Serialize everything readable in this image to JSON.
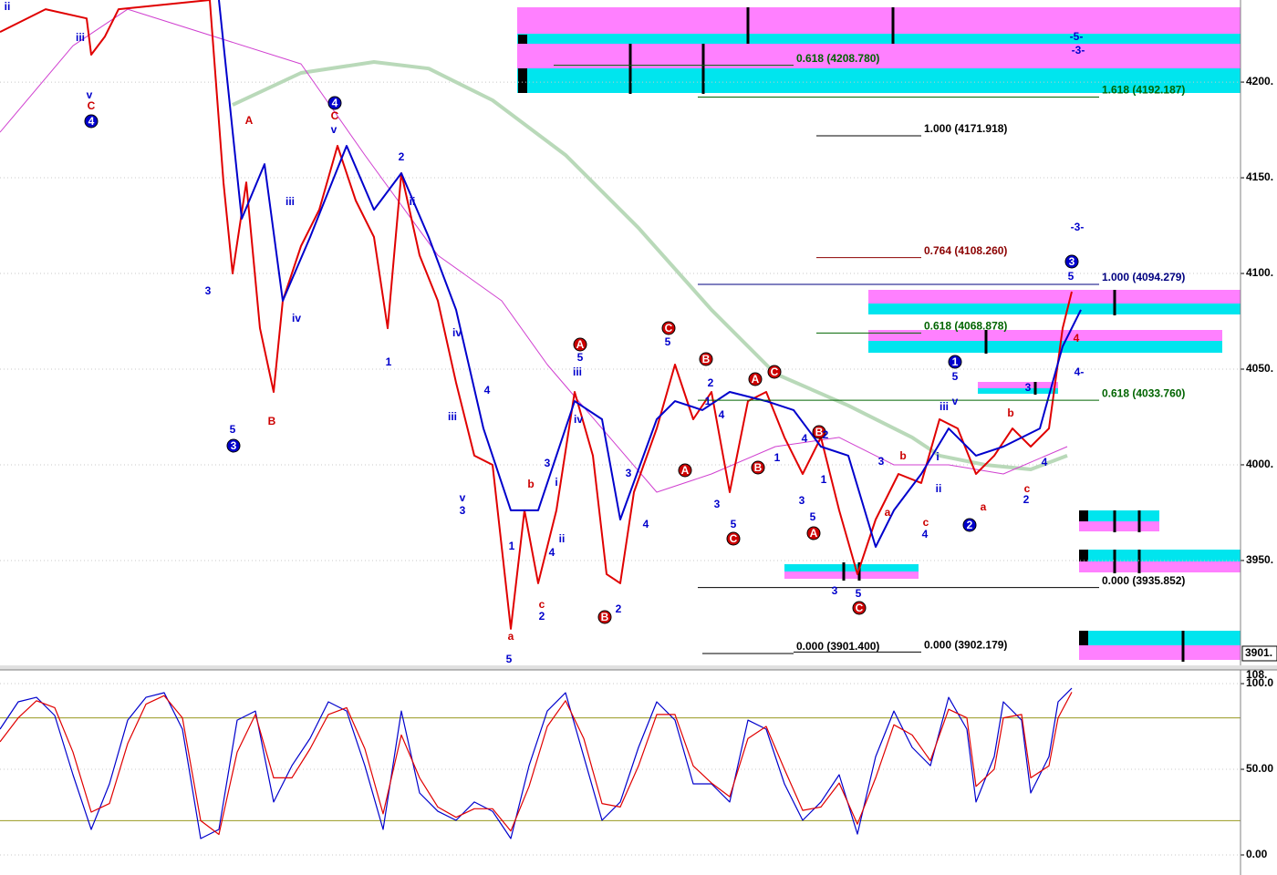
{
  "chart_data": [
    {
      "type": "line",
      "xlim": [
        0,
        136
      ],
      "ylim": [
        3895.2,
        4242.9
      ],
      "grid": true,
      "yticks": [
        {
          "value": 4200,
          "label": "4200."
        },
        {
          "value": 4150,
          "label": "4150."
        },
        {
          "value": 4100,
          "label": "4100."
        },
        {
          "value": 4050,
          "label": "4050."
        },
        {
          "value": 4000,
          "label": "4000."
        },
        {
          "value": 3950,
          "label": "3950."
        }
      ],
      "last_price": {
        "value": 3901.4,
        "label": "3901."
      },
      "series": [
        {
          "color": "#b9d9b9",
          "x": [
            25.5,
            33,
            41,
            47,
            54,
            62,
            70,
            78,
            85,
            93,
            100,
            103,
            108,
            113,
            117
          ],
          "values": [
            4188.1,
            4204.8,
            4210.5,
            4207.1,
            4190.5,
            4161.9,
            4123.8,
            4081,
            4047.6,
            4031,
            4014.3,
            4004.8,
            4000,
            3997.6,
            4004.8
          ]
        },
        {
          "color": "#d040d0",
          "x": [
            0,
            8,
            14,
            33,
            40,
            48,
            55,
            60,
            66,
            72,
            78,
            85,
            92,
            98,
            104,
            110,
            117
          ],
          "values": [
            4173.8,
            4219,
            4238.1,
            4209.5,
            4161.9,
            4109.5,
            4085.7,
            4052.4,
            4019,
            3985.7,
            3995.2,
            4009.5,
            4014.3,
            4000,
            4000,
            3995.2,
            4009.5
          ]
        },
        {
          "color": "#e00000",
          "x": [
            0,
            5,
            9.5,
            10,
            11.5,
            13,
            23,
            24.5,
            25.5,
            27,
            28.5,
            30,
            31,
            33,
            35,
            37,
            39,
            41,
            42.5,
            44,
            46,
            48,
            50,
            52,
            54,
            56,
            57.5,
            59,
            61,
            63,
            65,
            66.5,
            68,
            69.5,
            72,
            74,
            76,
            78,
            80,
            82,
            84,
            86,
            88,
            90,
            92,
            94,
            96,
            98.5,
            101,
            103,
            105,
            107,
            109,
            111,
            113,
            115,
            116.5,
            117.5
          ],
          "values": [
            4226.2,
            4238.1,
            4233.3,
            4214.3,
            4223.8,
            4238.1,
            4242.9,
            4147.6,
            4100,
            4147.6,
            4071.4,
            4038.1,
            4085.7,
            4114.3,
            4133.3,
            4166.7,
            4138.1,
            4119,
            4071.4,
            4152.4,
            4109.5,
            4085.7,
            4042.9,
            4004.8,
            4000,
            3914.3,
            3976.2,
            3938.1,
            3976.2,
            4038.1,
            4004.8,
            3942.9,
            3938.1,
            3985.7,
            4019,
            4052.4,
            4023.8,
            4038.1,
            3985.7,
            4033.3,
            4038.1,
            4014.3,
            3995.2,
            4014.3,
            3976.2,
            3942.9,
            3971.4,
            3995.2,
            3990.5,
            4023.8,
            4019,
            3995.2,
            4004.8,
            4019,
            4009.5,
            4019,
            4071.4,
            4090.5
          ]
        },
        {
          "color": "#0000cc",
          "x": [
            24,
            26.5,
            29,
            31,
            34,
            38,
            41,
            44,
            47,
            50,
            53,
            56,
            59,
            63,
            66,
            68,
            72,
            74,
            77,
            80,
            84,
            87,
            90,
            93,
            96,
            98,
            101,
            104,
            107,
            110,
            114,
            116.5,
            118.5
          ],
          "values": [
            4242.9,
            4128.6,
            4157.1,
            4085.7,
            4119,
            4166.7,
            4133.3,
            4152.4,
            4119,
            4081,
            4019,
            3976.2,
            3976.2,
            4033.3,
            4023.8,
            3971.4,
            4023.8,
            4033.3,
            4028.6,
            4038.1,
            4033.3,
            4028.6,
            4009.5,
            4004.8,
            3957.1,
            3976.2,
            3995.2,
            4019,
            4004.8,
            4009.5,
            4019,
            4061.9,
            4081
          ]
        }
      ],
      "fib_levels": [
        {
          "label": "0.618 (4208.780)",
          "level": 4208.78,
          "x": [
            60.7,
            87
          ],
          "color": "#006400"
        },
        {
          "label": "1.618 (4192.187)",
          "level": 4192.187,
          "x": [
            76.5,
            120.5
          ],
          "color": "#006400"
        },
        {
          "label": "1.000 (4171.918)",
          "level": 4171.918,
          "x": [
            89.5,
            101
          ],
          "color": "#000000"
        },
        {
          "label": "0.764 (4108.260)",
          "level": 4108.26,
          "x": [
            89.5,
            101
          ],
          "color": "#8b0000"
        },
        {
          "label": "1.000 (4094.279)",
          "level": 4094.279,
          "x": [
            76.5,
            120.5
          ],
          "color": "#000080"
        },
        {
          "label": "0.618 (4068.878)",
          "level": 4068.878,
          "x": [
            89.5,
            101
          ],
          "color": "#006400"
        },
        {
          "label": "0.618 (4033.760)",
          "level": 4033.76,
          "x": [
            76.5,
            120.5
          ],
          "color": "#006400"
        },
        {
          "label": "0.000 (3935.852)",
          "level": 3935.852,
          "x": [
            76.5,
            120.5
          ],
          "color": "#000000"
        },
        {
          "label": "0.000 (3901.400)",
          "level": 3901.4,
          "x": [
            77,
            87
          ],
          "color": "#000000"
        },
        {
          "label": "0.000 (3902.179)",
          "level": 3902.179,
          "x": [
            87,
            101
          ],
          "color": "#000000"
        }
      ],
      "wave_labels": [
        {
          "text": "v",
          "color": "#0000cc"
        },
        {
          "text": "C",
          "color": "#cc0000"
        },
        {
          "text": "4",
          "color": "#0000cc",
          "circled": true
        },
        {
          "text": "iii",
          "color": "#0000cc"
        },
        {
          "text": "ii",
          "color": "#0000cc"
        },
        {
          "text": "5",
          "color": "#0000cc"
        },
        {
          "text": "3",
          "color": "#0000cc",
          "circled": true
        },
        {
          "text": "A",
          "color": "#cc0000"
        },
        {
          "text": "B",
          "color": "#cc0000"
        },
        {
          "text": "3",
          "color": "#0000cc"
        },
        {
          "text": "4",
          "color": "#0000cc",
          "circled": true
        },
        {
          "text": "C",
          "color": "#cc0000"
        },
        {
          "text": "v",
          "color": "#0000cc"
        },
        {
          "text": "iii",
          "color": "#0000cc"
        },
        {
          "text": "iv",
          "color": "#0000cc"
        },
        {
          "text": "2",
          "color": "#0000cc"
        },
        {
          "text": "ii",
          "color": "#0000cc"
        },
        {
          "text": "1",
          "color": "#0000cc"
        },
        {
          "text": "iii",
          "color": "#0000cc"
        },
        {
          "text": "iv",
          "color": "#0000cc"
        },
        {
          "text": "4",
          "color": "#0000cc"
        },
        {
          "text": "v",
          "color": "#0000cc"
        },
        {
          "text": "3",
          "color": "#0000cc"
        },
        {
          "text": "a",
          "color": "#cc0000"
        },
        {
          "text": "1",
          "color": "#0000cc"
        },
        {
          "text": "b",
          "color": "#cc0000"
        },
        {
          "text": "c",
          "color": "#cc0000"
        },
        {
          "text": "2",
          "color": "#0000cc"
        },
        {
          "text": "3",
          "color": "#0000cc"
        },
        {
          "text": "i",
          "color": "#0000cc"
        },
        {
          "text": "4",
          "color": "#0000cc"
        },
        {
          "text": "ii",
          "color": "#0000cc"
        },
        {
          "text": "A",
          "color": "#cc0000",
          "circled": true
        },
        {
          "text": "5",
          "color": "#0000cc"
        },
        {
          "text": "iii",
          "color": "#0000cc"
        },
        {
          "text": "iv",
          "color": "#0000cc"
        },
        {
          "text": "B",
          "color": "#cc0000",
          "circled": true
        },
        {
          "text": "2",
          "color": "#0000cc"
        },
        {
          "text": "3",
          "color": "#0000cc"
        },
        {
          "text": "4",
          "color": "#0000cc"
        },
        {
          "text": "C",
          "color": "#cc0000",
          "circled": true
        },
        {
          "text": "5",
          "color": "#0000cc"
        },
        {
          "text": "B",
          "color": "#cc0000",
          "circled": true
        },
        {
          "text": "2",
          "color": "#0000cc"
        },
        {
          "text": "1",
          "color": "#0000cc"
        },
        {
          "text": "4",
          "color": "#0000cc"
        },
        {
          "text": "A",
          "color": "#cc0000",
          "circled": true
        },
        {
          "text": "3",
          "color": "#0000cc"
        },
        {
          "text": "5",
          "color": "#0000cc"
        },
        {
          "text": "C",
          "color": "#cc0000",
          "circled": true
        },
        {
          "text": "A",
          "color": "#cc0000",
          "circled": true
        },
        {
          "text": "C",
          "color": "#cc0000",
          "circled": true
        },
        {
          "text": "B",
          "color": "#cc0000",
          "circled": true
        },
        {
          "text": "1",
          "color": "#0000cc"
        },
        {
          "text": "B",
          "color": "#cc0000",
          "circled": true
        },
        {
          "text": "2",
          "color": "#0000cc"
        },
        {
          "text": "4",
          "color": "#0000cc"
        },
        {
          "text": "3",
          "color": "#0000cc"
        },
        {
          "text": "5",
          "color": "#0000cc"
        },
        {
          "text": "A",
          "color": "#cc0000",
          "circled": true
        },
        {
          "text": "1",
          "color": "#0000cc"
        },
        {
          "text": "3",
          "color": "#0000cc"
        },
        {
          "text": "5",
          "color": "#0000cc"
        },
        {
          "text": "C",
          "color": "#cc0000",
          "circled": true
        },
        {
          "text": "3",
          "color": "#0000cc"
        },
        {
          "text": "b",
          "color": "#cc0000"
        },
        {
          "text": "a",
          "color": "#cc0000"
        },
        {
          "text": "c",
          "color": "#cc0000"
        },
        {
          "text": "4",
          "color": "#0000cc"
        },
        {
          "text": "ii",
          "color": "#0000cc"
        },
        {
          "text": "i",
          "color": "#0000cc"
        },
        {
          "text": "iii",
          "color": "#0000cc"
        },
        {
          "text": "v",
          "color": "#0000cc"
        },
        {
          "text": "1",
          "color": "#0000cc",
          "circled": true
        },
        {
          "text": "5",
          "color": "#0000cc"
        },
        {
          "text": "2",
          "color": "#0000cc",
          "circled": true
        },
        {
          "text": "a",
          "color": "#cc0000"
        },
        {
          "text": "b",
          "color": "#cc0000"
        },
        {
          "text": "c",
          "color": "#cc0000"
        },
        {
          "text": "2",
          "color": "#0000cc"
        },
        {
          "text": "3",
          "color": "#0000cc"
        },
        {
          "text": "4",
          "color": "#0000cc"
        },
        {
          "text": "3",
          "color": "#0000cc",
          "circled": true
        },
        {
          "text": "5",
          "color": "#0000cc"
        },
        {
          "text": "-5-",
          "color": "#0000cc"
        },
        {
          "text": "-3-",
          "color": "#0000cc"
        },
        {
          "text": "-3-",
          "color": "#0000cc"
        },
        {
          "text": "4-",
          "color": "#0000cc"
        },
        {
          "text": "4",
          "color": "#cc0000"
        },
        {
          "text": "5",
          "color": "#0000cc"
        }
      ]
    },
    {
      "type": "line",
      "xlim": [
        0,
        136
      ],
      "ylim": [
        -11.7,
        108
      ],
      "grid": true,
      "yticks": [
        {
          "value": 108,
          "label": "108."
        },
        {
          "value": 100,
          "label": "100.0"
        },
        {
          "value": 50,
          "label": "50.00"
        },
        {
          "value": 0,
          "label": "0.00"
        }
      ],
      "levels": [
        80,
        20
      ],
      "level_color": "#9a9a20",
      "series": [
        {
          "color": "#0000cc",
          "x": [
            0,
            2,
            4,
            6,
            8,
            10,
            12,
            14,
            16,
            18,
            20,
            22,
            24,
            26,
            28,
            30,
            32,
            34,
            36,
            38,
            40,
            42,
            44,
            46,
            48,
            50,
            52,
            54,
            56,
            58,
            60,
            62,
            64,
            66,
            68,
            70,
            72,
            74,
            76,
            78,
            80,
            82,
            84,
            86,
            88,
            90,
            92,
            94,
            96,
            98,
            100,
            102,
            104,
            106,
            107,
            109,
            110,
            112,
            113,
            115,
            116,
            117.5
          ],
          "values": [
            73.4,
            89.4,
            92,
            81.4,
            46.8,
            14.9,
            41.5,
            78.7,
            92,
            94.7,
            73.4,
            9.6,
            14.9,
            78.7,
            84,
            30.9,
            52.1,
            68.1,
            89.4,
            84,
            52.1,
            14.9,
            84,
            36.2,
            25.5,
            20.2,
            30.9,
            25.5,
            9.6,
            52.1,
            84,
            94.7,
            57.4,
            20.2,
            30.9,
            62.8,
            89.4,
            78.7,
            41.5,
            41.5,
            30.9,
            78.7,
            73.4,
            41.5,
            20.2,
            30.9,
            46.8,
            12.2,
            57.4,
            84,
            62.8,
            52.1,
            92,
            73.4,
            30.9,
            57.4,
            89.4,
            78.7,
            36.2,
            57.4,
            89.4,
            97.3
          ]
        },
        {
          "color": "#e00000",
          "x": [
            0,
            2,
            4,
            6,
            8,
            10,
            12,
            14,
            16,
            18,
            20,
            22,
            24,
            26,
            28,
            30,
            32,
            34,
            36,
            38,
            40,
            42,
            44,
            46,
            48,
            50,
            52,
            54,
            56,
            58,
            60,
            62,
            64,
            66,
            68,
            70,
            72,
            74,
            76,
            78,
            80,
            82,
            84,
            86,
            88,
            90,
            92,
            94,
            96,
            98,
            100,
            102,
            104,
            106,
            107,
            109,
            110,
            112,
            113,
            115,
            116,
            117.5
          ],
          "values": [
            66,
            80,
            90,
            86,
            60,
            25,
            30,
            65,
            88,
            93,
            80,
            20,
            12,
            60,
            82,
            45,
            45,
            62,
            82,
            86,
            62,
            24,
            70,
            45,
            28,
            22,
            27,
            27,
            14,
            40,
            75,
            90,
            68,
            30,
            28,
            52,
            82,
            82,
            52,
            42,
            34,
            68,
            75,
            50,
            26,
            28,
            42,
            18,
            45,
            76,
            70,
            55,
            85,
            80,
            40,
            50,
            80,
            82,
            45,
            52,
            80,
            95
          ]
        }
      ]
    }
  ]
}
